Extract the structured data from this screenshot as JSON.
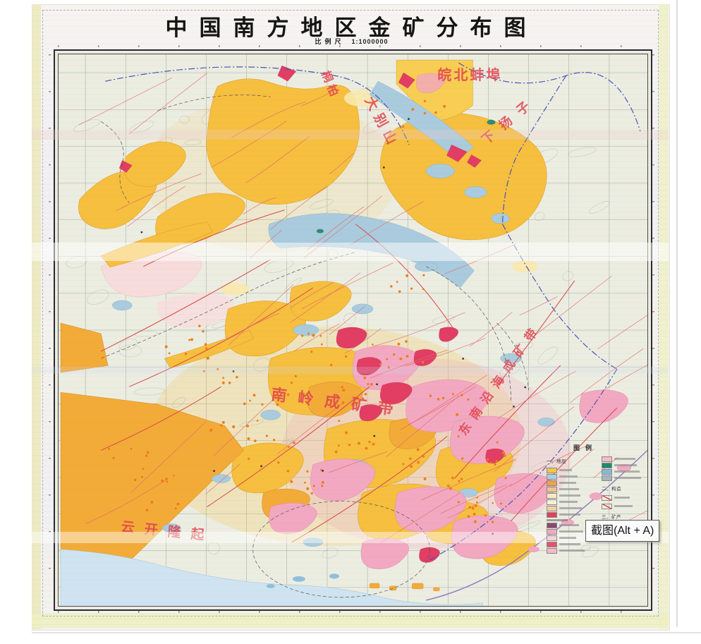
{
  "map": {
    "title": "中国南方地区金矿分布图",
    "scale_label": "比例尺",
    "scale_value": "1:1000000",
    "labels": [
      {
        "id": "wanbei-bengbu",
        "text": "皖北蚌埠"
      },
      {
        "id": "tongbai",
        "text": "桐柏"
      },
      {
        "id": "dabieshan",
        "text": "大别山"
      },
      {
        "id": "xia-yangzi",
        "text": "下扬子"
      },
      {
        "id": "nanling-belt",
        "text": "南岭成矿带"
      },
      {
        "id": "dongnan-coast-belt",
        "text": "东南沿海成矿带"
      },
      {
        "id": "yunkai-uplift",
        "text": "云开隆起"
      }
    ],
    "legend": {
      "title": "图例",
      "section_strata": "一、地层",
      "section_structure": "二、构造",
      "section_minerals": "三、矿产",
      "left_items": [
        {
          "color": "#f6c544"
        },
        {
          "color": "#a9d0e2"
        },
        {
          "color": "#f0a14a"
        },
        {
          "color": "#e7c693"
        },
        {
          "color": "#f8ecbe"
        },
        {
          "color": "#f3f0da"
        },
        {
          "color": "#f6cda2"
        },
        {
          "color": "#e2405c"
        },
        {
          "color": "#8a4a6e"
        },
        {
          "color": "#f2aabe"
        },
        {
          "color": "#f7d3da"
        },
        {
          "color": "#e8516d"
        },
        {
          "color": "#f4bac6"
        }
      ],
      "right_items": [
        {
          "color": "#f5bac6"
        },
        {
          "color": "#1f8a6e"
        },
        {
          "color": "#86b9d9"
        },
        {
          "color": "#a6b6c0"
        }
      ]
    },
    "accent_colors": {
      "fault_red": "#e06262",
      "unit_yellow": "#f6bf3e",
      "unit_pink": "#f2a8c0",
      "unit_crimson": "#e23d63",
      "unit_blue": "#a9cbdd",
      "boundary_blue": "#4a55b8",
      "gold_dot_orange": "#ef7d1a"
    }
  },
  "overlay": {
    "tooltip_text": "截图(Alt + A)"
  }
}
